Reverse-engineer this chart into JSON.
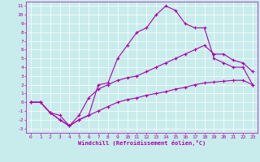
{
  "xlabel": "Windchill (Refroidissement éolien,°C)",
  "ylabel": "",
  "xlim": [
    -0.5,
    23.5
  ],
  "ylim": [
    -3.5,
    11.5
  ],
  "xticks": [
    0,
    1,
    2,
    3,
    4,
    5,
    6,
    7,
    8,
    9,
    10,
    11,
    12,
    13,
    14,
    15,
    16,
    17,
    18,
    19,
    20,
    21,
    22,
    23
  ],
  "yticks": [
    -3,
    -2,
    -1,
    0,
    1,
    2,
    3,
    4,
    5,
    6,
    7,
    8,
    9,
    10,
    11
  ],
  "bg_color": "#c8ecec",
  "line_color": "#aa00aa",
  "grid_color": "#ffffff",
  "line1_x": [
    0,
    1,
    2,
    3,
    4,
    5,
    6,
    7,
    8,
    9,
    10,
    11,
    12,
    13,
    14,
    15,
    16,
    17,
    18,
    19,
    20,
    21,
    22,
    23
  ],
  "line1_y": [
    0,
    0,
    -1.2,
    -2,
    -2.7,
    -2.0,
    -1.5,
    2.0,
    2.2,
    5.0,
    6.5,
    8.0,
    8.5,
    10.0,
    11.0,
    10.5,
    9.0,
    8.5,
    8.5,
    5.0,
    4.5,
    4.0,
    4.0,
    2.0
  ],
  "line2_x": [
    0,
    1,
    2,
    3,
    4,
    5,
    6,
    7,
    8,
    9,
    10,
    11,
    12,
    13,
    14,
    15,
    16,
    17,
    18,
    19,
    20,
    21,
    22,
    23
  ],
  "line2_y": [
    0,
    0,
    -1.2,
    -2,
    -2.7,
    -1.5,
    0.5,
    1.5,
    2.0,
    2.5,
    2.8,
    3.0,
    3.5,
    4.0,
    4.5,
    5.0,
    5.5,
    6.0,
    6.5,
    5.5,
    5.5,
    4.8,
    4.5,
    3.5
  ],
  "line3_x": [
    0,
    1,
    2,
    3,
    4,
    5,
    6,
    7,
    8,
    9,
    10,
    11,
    12,
    13,
    14,
    15,
    16,
    17,
    18,
    19,
    20,
    21,
    22,
    23
  ],
  "line3_y": [
    0,
    0,
    -1.2,
    -1.5,
    -2.7,
    -2.0,
    -1.5,
    -1.0,
    -0.5,
    0.0,
    0.3,
    0.5,
    0.8,
    1.0,
    1.2,
    1.5,
    1.7,
    2.0,
    2.2,
    2.3,
    2.4,
    2.5,
    2.5,
    2.0
  ],
  "marker": "+",
  "markersize": 3,
  "linewidth": 0.8
}
